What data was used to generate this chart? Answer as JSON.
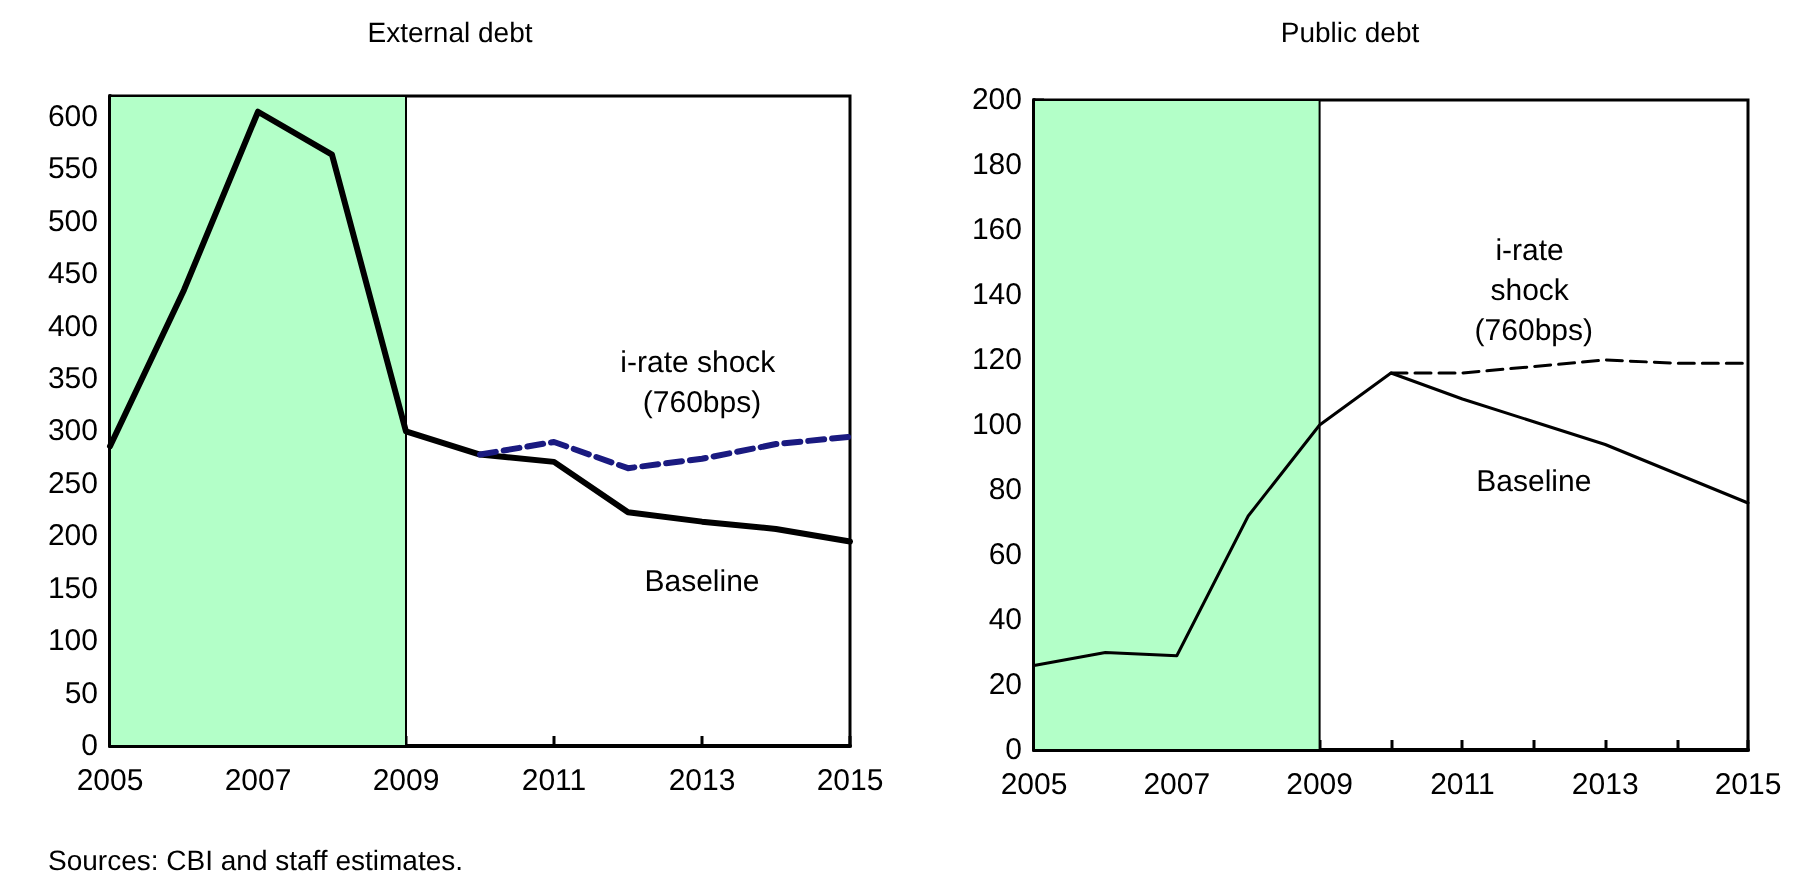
{
  "chart_data": [
    {
      "type": "line",
      "title": "External debt",
      "x": [
        2005,
        2006,
        2007,
        2008,
        2009,
        2010,
        2011,
        2012,
        2013,
        2014,
        2015
      ],
      "series": [
        {
          "name": "Baseline",
          "color": "#000000",
          "line_style": "solid",
          "values": [
            286,
            435,
            605,
            564,
            300,
            278,
            271,
            223,
            214,
            207,
            195
          ]
        },
        {
          "name": "i-rate shock (760bps)",
          "color": "#1a1a80",
          "line_style": "dashed",
          "values": [
            null,
            null,
            null,
            null,
            null,
            278,
            290,
            265,
            274,
            288,
            295
          ]
        }
      ],
      "xlim": [
        2005,
        2015
      ],
      "xticks": [
        2005,
        2007,
        2009,
        2011,
        2013,
        2015
      ],
      "ylim": [
        0,
        620
      ],
      "yticks": [
        0,
        50,
        100,
        150,
        200,
        250,
        300,
        350,
        400,
        450,
        500,
        550,
        600
      ],
      "bands": [
        {
          "axis": "x",
          "from": 2005,
          "to": 2009,
          "color": "#b3ffc8"
        }
      ],
      "annotations": [
        "Sources: CBI and staff estimates."
      ],
      "grid": false,
      "legend": false,
      "marker": "none"
    },
    {
      "type": "line",
      "title": "Public debt",
      "x": [
        2005,
        2006,
        2007,
        2008,
        2009,
        2010,
        2011,
        2012,
        2013,
        2014,
        2015
      ],
      "series": [
        {
          "name": "Baseline",
          "color": "#000000",
          "line_style": "solid",
          "values": [
            26,
            30,
            29,
            72,
            100,
            116,
            108,
            101,
            94,
            85,
            76
          ]
        },
        {
          "name": "i-rate shock (760bps)",
          "color": "#000000",
          "line_style": "dashed",
          "values": [
            null,
            null,
            null,
            null,
            null,
            116,
            116,
            118,
            120,
            119,
            119
          ]
        }
      ],
      "xlim": [
        2005,
        2015
      ],
      "xticks": [
        2005,
        {
          "value": 2006,
          "label": null
        },
        2007,
        {
          "value": 2008,
          "label": null
        },
        2009,
        {
          "value": 2010,
          "label": null
        },
        2011,
        {
          "value": 2012,
          "label": null
        },
        2013,
        {
          "value": 2014,
          "label": null
        },
        2015
      ],
      "ylim": [
        0,
        200
      ],
      "yticks": [
        0,
        20,
        40,
        60,
        80,
        100,
        120,
        140,
        160,
        180,
        200
      ],
      "bands": [
        {
          "axis": "x",
          "from": 2005,
          "to": 2009,
          "color": "#b3ffc8"
        }
      ],
      "grid": false,
      "legend": false,
      "marker": "none"
    }
  ]
}
